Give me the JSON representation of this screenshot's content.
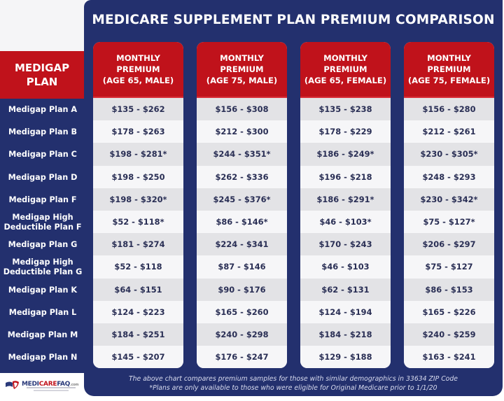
{
  "title": "MEDICARE SUPPLEMENT PLAN PREMIUM COMPARISON",
  "row_header": [
    "MEDIGAP",
    "PLAN"
  ],
  "columns": [
    {
      "lines": [
        "MONTHLY",
        "PREMIUM",
        "(AGE 65, MALE)"
      ]
    },
    {
      "lines": [
        "MONTHLY",
        "PREMIUM",
        "(AGE 75, MALE)"
      ]
    },
    {
      "lines": [
        "MONTHLY",
        "PREMIUM",
        "(AGE 65, FEMALE)"
      ]
    },
    {
      "lines": [
        "MONTHLY",
        "PREMIUM",
        "(AGE 75, FEMALE)"
      ]
    }
  ],
  "plans": [
    "Medigap Plan A",
    "Medigap Plan B",
    "Medigap Plan C",
    "Medigap Plan D",
    "Medigap Plan F",
    "Medigap High Deductible Plan F",
    "Medigap Plan G",
    "Medigap High Deductible Plan G",
    "Medigap Plan K",
    "Medigap Plan L",
    "Medigap Plan M",
    "Medigap Plan N"
  ],
  "plan_label_lines": [
    [
      "Medigap Plan A"
    ],
    [
      "Medigap Plan B"
    ],
    [
      "Medigap Plan C"
    ],
    [
      "Medigap Plan D"
    ],
    [
      "Medigap Plan F"
    ],
    [
      "Medigap High",
      "Deductible Plan F"
    ],
    [
      "Medigap Plan G"
    ],
    [
      "Medigap High",
      "Deductible Plan G"
    ],
    [
      "Medigap Plan K"
    ],
    [
      "Medigap Plan L"
    ],
    [
      "Medigap Plan M"
    ],
    [
      "Medigap Plan N"
    ]
  ],
  "values": [
    [
      "$135 - $262",
      "$178 - $263",
      "$198 - $281*",
      "$198 - $250",
      "$198 - $320*",
      "$52 - $118*",
      "$181 - $274",
      "$52 - $118",
      "$64 - $151",
      "$124 - $223",
      "$184 - $251",
      "$145 - $207"
    ],
    [
      "$156 - $308",
      "$212 - $300",
      "$244 - $351*",
      "$262 - $336",
      "$245 - $376*",
      "$86 - $146*",
      "$224 - $341",
      "$87 - $146",
      "$90 - $176",
      "$165 - $260",
      "$240 - $298",
      "$176 - $247"
    ],
    [
      "$135 - $238",
      "$178 - $229",
      "$186 - $249*",
      "$196 - $218",
      "$186 - $291*",
      "$46 - $103*",
      "$170 - $243",
      "$46 - $103",
      "$62 - $131",
      "$124 - $194",
      "$184 - $218",
      "$129 - $188"
    ],
    [
      "$156 - $280",
      "$212 - $261",
      "$230 - $305*",
      "$248 - $293",
      "$230 - $342*",
      "$75 - $127*",
      "$206 - $297",
      "$75 - $127",
      "$86 - $153",
      "$165 - $226",
      "$240 - $259",
      "$163 - $241"
    ]
  ],
  "footnotes": [
    "The above chart compares premium samples for those with similar demographics in 33634 ZIP Code",
    "*Plans are only available to those who were eligible for Original Medicare prior to 1/1/20"
  ],
  "logo": {
    "part1": "MEDI",
    "part2": "CARE",
    "part3": "FAQ",
    "suffix": ".com"
  },
  "colors": {
    "navy": "#23306e",
    "red": "#c0121b",
    "cell_light": "#f6f6f8",
    "cell_dark": "#e3e3e6",
    "value_text": "#2a2f55"
  },
  "chart_data": {
    "type": "table",
    "title": "MEDICARE SUPPLEMENT PLAN PREMIUM COMPARISON",
    "row_header": "MEDIGAP PLAN",
    "columns": [
      "Monthly Premium (Age 65, Male)",
      "Monthly Premium (Age 75, Male)",
      "Monthly Premium (Age 65, Female)",
      "Monthly Premium (Age 75, Female)"
    ],
    "rows": [
      {
        "plan": "Medigap Plan A",
        "values": [
          [
            135,
            262
          ],
          [
            156,
            308
          ],
          [
            135,
            238
          ],
          [
            156,
            280
          ]
        ],
        "asterisk": false
      },
      {
        "plan": "Medigap Plan B",
        "values": [
          [
            178,
            263
          ],
          [
            212,
            300
          ],
          [
            178,
            229
          ],
          [
            212,
            261
          ]
        ],
        "asterisk": false
      },
      {
        "plan": "Medigap Plan C",
        "values": [
          [
            198,
            281
          ],
          [
            244,
            351
          ],
          [
            186,
            249
          ],
          [
            230,
            305
          ]
        ],
        "asterisk": true
      },
      {
        "plan": "Medigap Plan D",
        "values": [
          [
            198,
            250
          ],
          [
            262,
            336
          ],
          [
            196,
            218
          ],
          [
            248,
            293
          ]
        ],
        "asterisk": false
      },
      {
        "plan": "Medigap Plan F",
        "values": [
          [
            198,
            320
          ],
          [
            245,
            376
          ],
          [
            186,
            291
          ],
          [
            230,
            342
          ]
        ],
        "asterisk": true
      },
      {
        "plan": "Medigap High Deductible Plan F",
        "values": [
          [
            52,
            118
          ],
          [
            86,
            146
          ],
          [
            46,
            103
          ],
          [
            75,
            127
          ]
        ],
        "asterisk": true
      },
      {
        "plan": "Medigap Plan G",
        "values": [
          [
            181,
            274
          ],
          [
            224,
            341
          ],
          [
            170,
            243
          ],
          [
            206,
            297
          ]
        ],
        "asterisk": false
      },
      {
        "plan": "Medigap High Deductible Plan G",
        "values": [
          [
            52,
            118
          ],
          [
            87,
            146
          ],
          [
            46,
            103
          ],
          [
            75,
            127
          ]
        ],
        "asterisk": false
      },
      {
        "plan": "Medigap Plan K",
        "values": [
          [
            64,
            151
          ],
          [
            90,
            176
          ],
          [
            62,
            131
          ],
          [
            86,
            153
          ]
        ],
        "asterisk": false
      },
      {
        "plan": "Medigap Plan L",
        "values": [
          [
            124,
            223
          ],
          [
            165,
            260
          ],
          [
            124,
            194
          ],
          [
            165,
            226
          ]
        ],
        "asterisk": false
      },
      {
        "plan": "Medigap Plan M",
        "values": [
          [
            184,
            251
          ],
          [
            240,
            298
          ],
          [
            184,
            218
          ],
          [
            240,
            259
          ]
        ],
        "asterisk": false
      },
      {
        "plan": "Medigap Plan N",
        "values": [
          [
            145,
            207
          ],
          [
            176,
            247
          ],
          [
            129,
            188
          ],
          [
            163,
            241
          ]
        ],
        "asterisk": false
      }
    ],
    "units": "USD per month (min - max)",
    "notes": [
      "The above chart compares premium samples for those with similar demographics in 33634 ZIP Code",
      "*Plans are only available to those who were eligible for Original Medicare prior to 1/1/20"
    ]
  }
}
